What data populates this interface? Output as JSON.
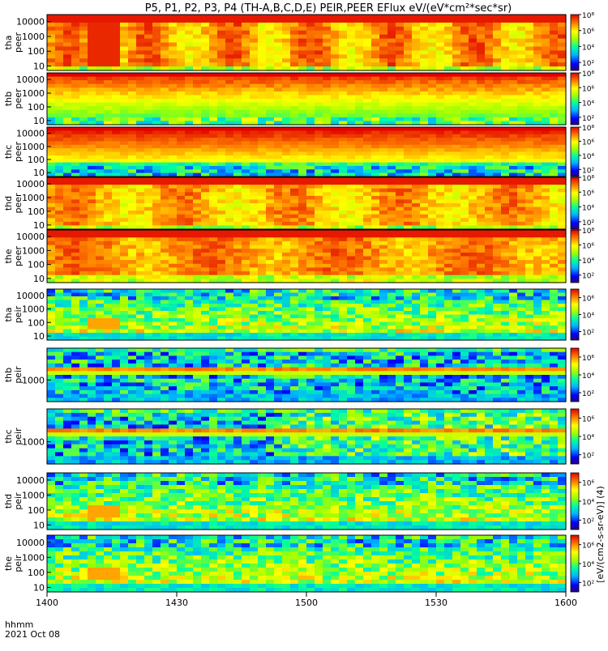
{
  "title": "P5, P1, P2, P3, P4 (TH-A,B,C,D,E) PEIR,PEER EFlux eV/(eV*cm²*sec*sr)",
  "time_axis": {
    "tick_labels": [
      "1400",
      "1430",
      "1500",
      "1530",
      "1600"
    ],
    "units_label": "hhmm",
    "date_label": "2021 Oct 08"
  },
  "colorbar_label": "[eV/(cm2-s-sr-eV)] (4)",
  "chart_data": [
    {
      "type": "heatmap",
      "probe": "tha",
      "species": "peer",
      "ylabel": [
        "tha",
        "peer"
      ],
      "yscale": "log",
      "ylim": [
        5,
        30000
      ],
      "yticks": [
        10,
        100,
        1000,
        10000
      ],
      "ytick_labels": [
        "10",
        "100",
        "1000",
        "10000"
      ],
      "zscale": "log",
      "zlim": [
        10.0,
        100000000.0
      ],
      "ztick_labels": [
        "10²",
        "10⁴",
        "10⁶",
        "10⁸"
      ],
      "x": [
        "1400",
        "1430",
        "1500",
        "1530",
        "1600"
      ]
    },
    {
      "type": "heatmap",
      "probe": "thb",
      "species": "peer",
      "ylabel": [
        "thb",
        "peer"
      ],
      "yscale": "log",
      "ylim": [
        5,
        30000
      ],
      "yticks": [
        10,
        100,
        1000,
        10000
      ],
      "ytick_labels": [
        "10",
        "100",
        "1000",
        "10000"
      ],
      "zscale": "log",
      "zlim": [
        10.0,
        100000000.0
      ],
      "ztick_labels": [
        "10²",
        "10⁴",
        "10⁶",
        "10⁸"
      ],
      "x": [
        "1400",
        "1430",
        "1500",
        "1530",
        "1600"
      ]
    },
    {
      "type": "heatmap",
      "probe": "thc",
      "species": "peer",
      "ylabel": [
        "thc",
        "peer"
      ],
      "yscale": "log",
      "ylim": [
        5,
        30000
      ],
      "yticks": [
        10,
        100,
        1000,
        10000
      ],
      "ytick_labels": [
        "10",
        "100",
        "1000",
        "10000"
      ],
      "zscale": "log",
      "zlim": [
        10.0,
        100000000.0
      ],
      "ztick_labels": [
        "10²",
        "10⁴",
        "10⁶",
        "10⁸"
      ],
      "x": [
        "1400",
        "1430",
        "1500",
        "1530",
        "1600"
      ]
    },
    {
      "type": "heatmap",
      "probe": "thd",
      "species": "peer",
      "ylabel": [
        "thd",
        "peer"
      ],
      "yscale": "log",
      "ylim": [
        5,
        30000
      ],
      "yticks": [
        10,
        100,
        1000,
        10000
      ],
      "ytick_labels": [
        "10",
        "100",
        "1000",
        "10000"
      ],
      "zscale": "log",
      "zlim": [
        10.0,
        100000000.0
      ],
      "ztick_labels": [
        "10²",
        "10⁴",
        "10⁶",
        "10⁸"
      ],
      "x": [
        "1400",
        "1430",
        "1500",
        "1530",
        "1600"
      ]
    },
    {
      "type": "heatmap",
      "probe": "the",
      "species": "peer",
      "ylabel": [
        "the",
        "peer"
      ],
      "yscale": "log",
      "ylim": [
        5,
        30000
      ],
      "yticks": [
        10,
        100,
        1000,
        10000
      ],
      "ytick_labels": [
        "10",
        "100",
        "1000",
        "10000"
      ],
      "zscale": "log",
      "zlim": [
        10.0,
        100000000.0
      ],
      "ztick_labels": [
        "10²",
        "10⁴",
        "10⁶",
        "10⁸"
      ],
      "x": [
        "1400",
        "1430",
        "1500",
        "1530",
        "1600"
      ]
    },
    {
      "type": "heatmap",
      "probe": "tha",
      "species": "peir",
      "ylabel": [
        "tha",
        "peir"
      ],
      "yscale": "log",
      "ylim": [
        5,
        30000
      ],
      "yticks": [
        10,
        100,
        1000,
        10000
      ],
      "ytick_labels": [
        "10",
        "100",
        "1000",
        "10000"
      ],
      "zscale": "log",
      "zlim": [
        10.0,
        10000000.0
      ],
      "ztick_labels": [
        "10²",
        "10⁴",
        "10⁶"
      ],
      "x": [
        "1400",
        "1430",
        "1500",
        "1530",
        "1600"
      ]
    },
    {
      "type": "heatmap",
      "probe": "thb",
      "species": "peir",
      "ylabel": [
        "thb",
        "peir"
      ],
      "yscale": "log",
      "ylim": [
        100,
        30000
      ],
      "yticks": [
        1000
      ],
      "ytick_labels": [
        "1000"
      ],
      "zscale": "log",
      "zlim": [
        10.0,
        10000000.0
      ],
      "ztick_labels": [
        "10²",
        "10⁴",
        "10⁶"
      ],
      "x": [
        "1400",
        "1430",
        "1500",
        "1530",
        "1600"
      ]
    },
    {
      "type": "heatmap",
      "probe": "thc",
      "species": "peir",
      "ylabel": [
        "thc",
        "peir"
      ],
      "yscale": "log",
      "ylim": [
        100,
        30000
      ],
      "yticks": [
        1000
      ],
      "ytick_labels": [
        "1000"
      ],
      "zscale": "log",
      "zlim": [
        10.0,
        10000000.0
      ],
      "ztick_labels": [
        "10²",
        "10⁴",
        "10⁶"
      ],
      "x": [
        "1400",
        "1430",
        "1500",
        "1530",
        "1600"
      ]
    },
    {
      "type": "heatmap",
      "probe": "thd",
      "species": "peir",
      "ylabel": [
        "thd",
        "peir"
      ],
      "yscale": "log",
      "ylim": [
        5,
        30000
      ],
      "yticks": [
        10,
        100,
        1000,
        10000
      ],
      "ytick_labels": [
        "10",
        "100",
        "1000",
        "10000"
      ],
      "zscale": "log",
      "zlim": [
        10.0,
        10000000.0
      ],
      "ztick_labels": [
        "10²",
        "10⁴",
        "10⁶"
      ],
      "x": [
        "1400",
        "1430",
        "1500",
        "1530",
        "1600"
      ]
    },
    {
      "type": "heatmap",
      "probe": "the",
      "species": "peir",
      "ylabel": [
        "the",
        "peir"
      ],
      "yscale": "log",
      "ylim": [
        5,
        30000
      ],
      "yticks": [
        10,
        100,
        1000,
        10000
      ],
      "ytick_labels": [
        "10",
        "100",
        "1000",
        "10000"
      ],
      "zscale": "log",
      "zlim": [
        10.0,
        10000000.0
      ],
      "ztick_labels": [
        "10²",
        "10⁴",
        "10⁶"
      ],
      "x": [
        "1400",
        "1430",
        "1500",
        "1530",
        "1600"
      ]
    }
  ]
}
